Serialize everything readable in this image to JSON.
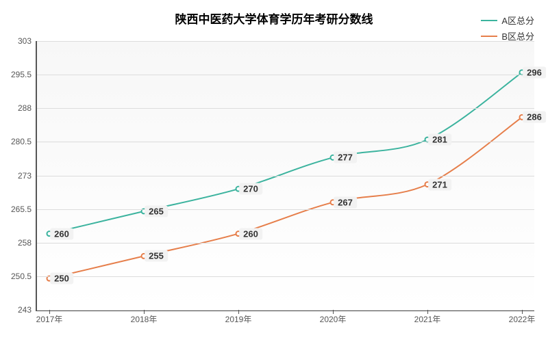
{
  "chart": {
    "title": "陕西中医药大学体育学历年考研分数线",
    "title_fontsize": 17,
    "title_color": "#000000",
    "background_color": "#ffffff",
    "plot_bg_top": "#f7f7f7",
    "plot_bg_bottom": "#ffffff",
    "grid_color": "#dcdcdc",
    "axis_color": "#555555",
    "label_fontsize": 12,
    "data_label_fontsize": 13,
    "data_label_bg": "#f2f2f2",
    "data_label_color": "#333333",
    "ylim": [
      243,
      303
    ],
    "ytick_step": 7.5,
    "yticks": [
      243,
      250.5,
      258,
      265.5,
      273,
      280.5,
      288,
      295.5,
      303
    ],
    "x_categories": [
      "2017年",
      "2018年",
      "2019年",
      "2020年",
      "2021年",
      "2022年"
    ],
    "series": [
      {
        "name": "A区总分",
        "color": "#3bb39e",
        "line_width": 2,
        "values": [
          260,
          265,
          270,
          277,
          281,
          296
        ]
      },
      {
        "name": "B区总分",
        "color": "#e67e4a",
        "line_width": 2,
        "values": [
          250,
          255,
          260,
          267,
          271,
          286
        ]
      }
    ]
  }
}
